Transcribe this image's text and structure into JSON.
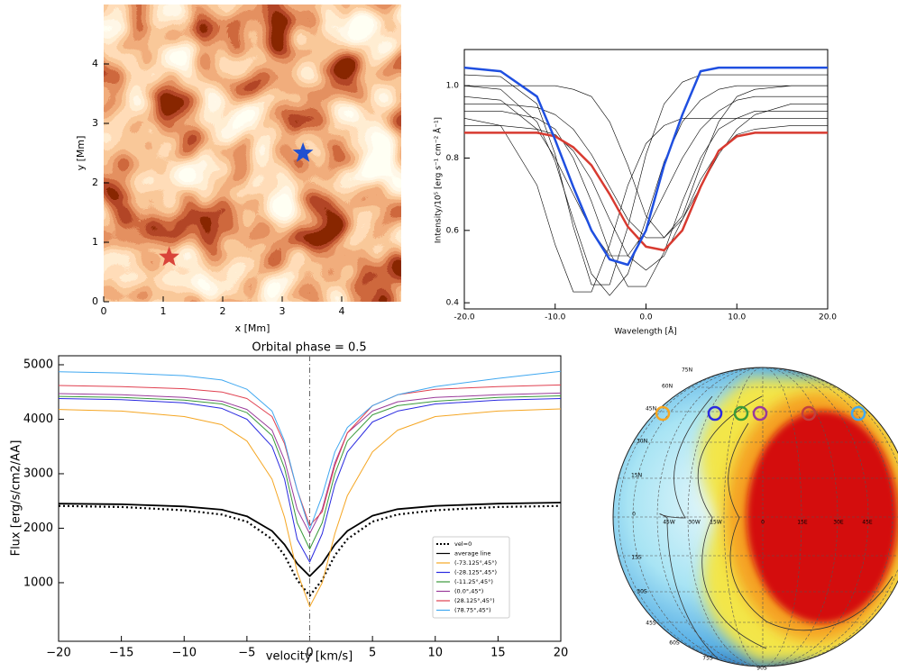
{
  "chart_data": [
    {
      "type": "scatter",
      "xlabel": "x [Mm]",
      "ylabel": "y [Mm]",
      "xlim": [
        0,
        5
      ],
      "ylim": [
        0,
        5
      ],
      "xticks": [
        0,
        1,
        2,
        3,
        4
      ],
      "yticks": [
        0,
        1,
        2,
        3,
        4
      ],
      "series": [
        {
          "color": "#d9443a",
          "x": [
            1.1
          ],
          "values": [
            0.75
          ]
        },
        {
          "color": "#2050d0",
          "x": [
            3.35
          ],
          "values": [
            2.5
          ]
        }
      ]
    },
    {
      "type": "line",
      "xlabel": "Wavelength [Å]",
      "ylabel": "Intensity/10⁵ [erg s⁻¹ cm⁻² Å⁻¹]",
      "x": [
        -20,
        -16,
        -12,
        -10,
        -8,
        -6,
        -4,
        -2,
        0,
        2,
        4,
        6,
        8,
        10,
        12,
        16,
        20
      ],
      "xlim": [
        -20,
        20
      ],
      "ylim": [
        0.383,
        1.1
      ],
      "xticks": [
        {
          "value": -20,
          "label": "-20.0"
        },
        {
          "value": -10,
          "label": "-10.0"
        },
        {
          "value": 0,
          "label": "0.0"
        },
        {
          "value": 10,
          "label": "10.0"
        },
        {
          "value": 20,
          "label": "20.0"
        }
      ],
      "yticks": [
        0.4,
        0.6,
        0.8,
        {
          "value": 1,
          "label": "1.0"
        }
      ],
      "series": [
        {
          "color": "#000000",
          "values": [
            1.0,
            0.99,
            0.9,
            0.79,
            0.63,
            0.48,
            0.42,
            0.48,
            0.63,
            0.79,
            0.9,
            0.96,
            0.99,
            1.0,
            1.0,
            1.0,
            1.0
          ]
        },
        {
          "color": "#000000",
          "values": [
            0.93,
            0.93,
            0.91,
            0.88,
            0.8,
            0.68,
            0.54,
            0.445,
            0.445,
            0.54,
            0.68,
            0.8,
            0.88,
            0.91,
            0.93,
            0.93,
            0.93
          ]
        },
        {
          "color": "#000000",
          "values": [
            0.97,
            0.96,
            0.88,
            0.8,
            0.7,
            0.6,
            0.53,
            0.53,
            0.6,
            0.7,
            0.8,
            0.88,
            0.93,
            0.96,
            0.97,
            0.97,
            0.97
          ]
        },
        {
          "color": "#000000",
          "values": [
            0.89,
            0.89,
            0.88,
            0.865,
            0.82,
            0.74,
            0.63,
            0.53,
            0.49,
            0.53,
            0.63,
            0.74,
            0.82,
            0.865,
            0.88,
            0.89,
            0.89
          ]
        },
        {
          "color": "#000000",
          "values": [
            1.03,
            1.025,
            0.95,
            0.81,
            0.61,
            0.45,
            0.45,
            0.61,
            0.81,
            0.95,
            1.01,
            1.03,
            1.03,
            1.03,
            1.03,
            1.03,
            1.03
          ]
        },
        {
          "color": "#000000",
          "values": [
            0.95,
            0.95,
            0.94,
            0.92,
            0.88,
            0.81,
            0.72,
            0.63,
            0.58,
            0.58,
            0.63,
            0.72,
            0.81,
            0.88,
            0.92,
            0.95,
            0.95
          ]
        },
        {
          "color": "#000000",
          "values": [
            0.91,
            0.89,
            0.725,
            0.56,
            0.43,
            0.43,
            0.56,
            0.725,
            0.84,
            0.89,
            0.91,
            0.91,
            0.91,
            0.91,
            0.91,
            0.91,
            0.91
          ]
        },
        {
          "color": "#000000",
          "values": [
            1.0,
            1.0,
            1.0,
            1.0,
            0.99,
            0.97,
            0.9,
            0.78,
            0.64,
            0.58,
            0.64,
            0.78,
            0.9,
            0.97,
            0.99,
            1.0,
            1.0
          ]
        },
        {
          "color": "#d83a30",
          "values": [
            0.87,
            0.87,
            0.87,
            0.86,
            0.83,
            0.78,
            0.7,
            0.61,
            0.555,
            0.545,
            0.6,
            0.72,
            0.82,
            0.86,
            0.87,
            0.87,
            0.87
          ]
        },
        {
          "color": "#1f4fe0",
          "values": [
            1.05,
            1.04,
            0.97,
            0.85,
            0.72,
            0.6,
            0.52,
            0.505,
            0.6,
            0.78,
            0.92,
            1.04,
            1.05,
            1.05,
            1.05,
            1.05,
            1.05
          ]
        }
      ]
    },
    {
      "type": "line",
      "title": "Orbital phase = 0.5",
      "xlabel": "velocity [km/s]",
      "ylabel": "Flux  [erg/s/cm2/AA]",
      "x": [
        -20,
        -15,
        -10,
        -7,
        -5,
        -3,
        -2,
        -1,
        0,
        1,
        2,
        3,
        5,
        7,
        10,
        15,
        20
      ],
      "xlim": [
        -20,
        20
      ],
      "ylim": [
        -75,
        5165
      ],
      "xticks": [
        {
          "value": -20,
          "label": "−20"
        },
        {
          "value": -15,
          "label": "−15"
        },
        {
          "value": -10,
          "label": "−10"
        },
        {
          "value": -5,
          "label": "−5"
        },
        0,
        5,
        10,
        15,
        20
      ],
      "yticks": [
        1000,
        2000,
        3000,
        4000,
        5000
      ],
      "legend": "lower right",
      "series": [
        {
          "name": "vel=0",
          "color": "#000000",
          "dash": "dotted",
          "values": [
            2410,
            2390,
            2330,
            2250,
            2120,
            1800,
            1500,
            1050,
            760,
            1050,
            1500,
            1800,
            2120,
            2250,
            2330,
            2390,
            2410
          ]
        },
        {
          "name": "average line",
          "color": "#000000",
          "values": [
            2450,
            2440,
            2400,
            2340,
            2220,
            1950,
            1700,
            1350,
            1120,
            1350,
            1700,
            1950,
            2230,
            2350,
            2410,
            2450,
            2470
          ]
        },
        {
          "name": "(-73.125°,45°)",
          "color": "#f5a623",
          "values": [
            4180,
            4150,
            4050,
            3900,
            3600,
            2900,
            2200,
            1200,
            560,
            1000,
            1900,
            2600,
            3400,
            3800,
            4050,
            4150,
            4190
          ]
        },
        {
          "name": "(-28.125°,45°)",
          "color": "#2a2ae0",
          "values": [
            4380,
            4360,
            4300,
            4200,
            4000,
            3500,
            2900,
            1800,
            1380,
            1900,
            2800,
            3400,
            3950,
            4150,
            4280,
            4350,
            4380
          ]
        },
        {
          "name": "(-11.25°,45°)",
          "color": "#3a9a3a",
          "values": [
            4420,
            4400,
            4350,
            4280,
            4120,
            3700,
            3100,
            2100,
            1620,
            2100,
            3000,
            3600,
            4080,
            4250,
            4330,
            4400,
            4430
          ]
        },
        {
          "name": "(0.0°,45°)",
          "color": "#9a3a9a",
          "values": [
            4470,
            4450,
            4400,
            4330,
            4180,
            3800,
            3250,
            2350,
            1900,
            2350,
            3200,
            3750,
            4150,
            4320,
            4400,
            4450,
            4480
          ]
        },
        {
          "name": "(28.125°,45°)",
          "color": "#e04050",
          "values": [
            4620,
            4600,
            4560,
            4500,
            4380,
            4050,
            3550,
            2700,
            2050,
            2300,
            3150,
            3750,
            4250,
            4450,
            4550,
            4600,
            4630
          ]
        },
        {
          "name": "(78.75°,45°)",
          "color": "#40a8f0",
          "values": [
            4870,
            4850,
            4800,
            4720,
            4550,
            4150,
            3600,
            2700,
            1980,
            2600,
            3400,
            3850,
            4250,
            4450,
            4600,
            4750,
            4880
          ]
        }
      ]
    }
  ],
  "map": {
    "lat_labels": [
      "75N",
      "60N",
      "45N",
      "30N",
      "15N",
      "0",
      "15S",
      "30S",
      "45S",
      "60S",
      "75S",
      "90S"
    ],
    "lon_labels": [
      "45W",
      "30W",
      "15W",
      "0",
      "15E",
      "30E",
      "45E"
    ]
  }
}
